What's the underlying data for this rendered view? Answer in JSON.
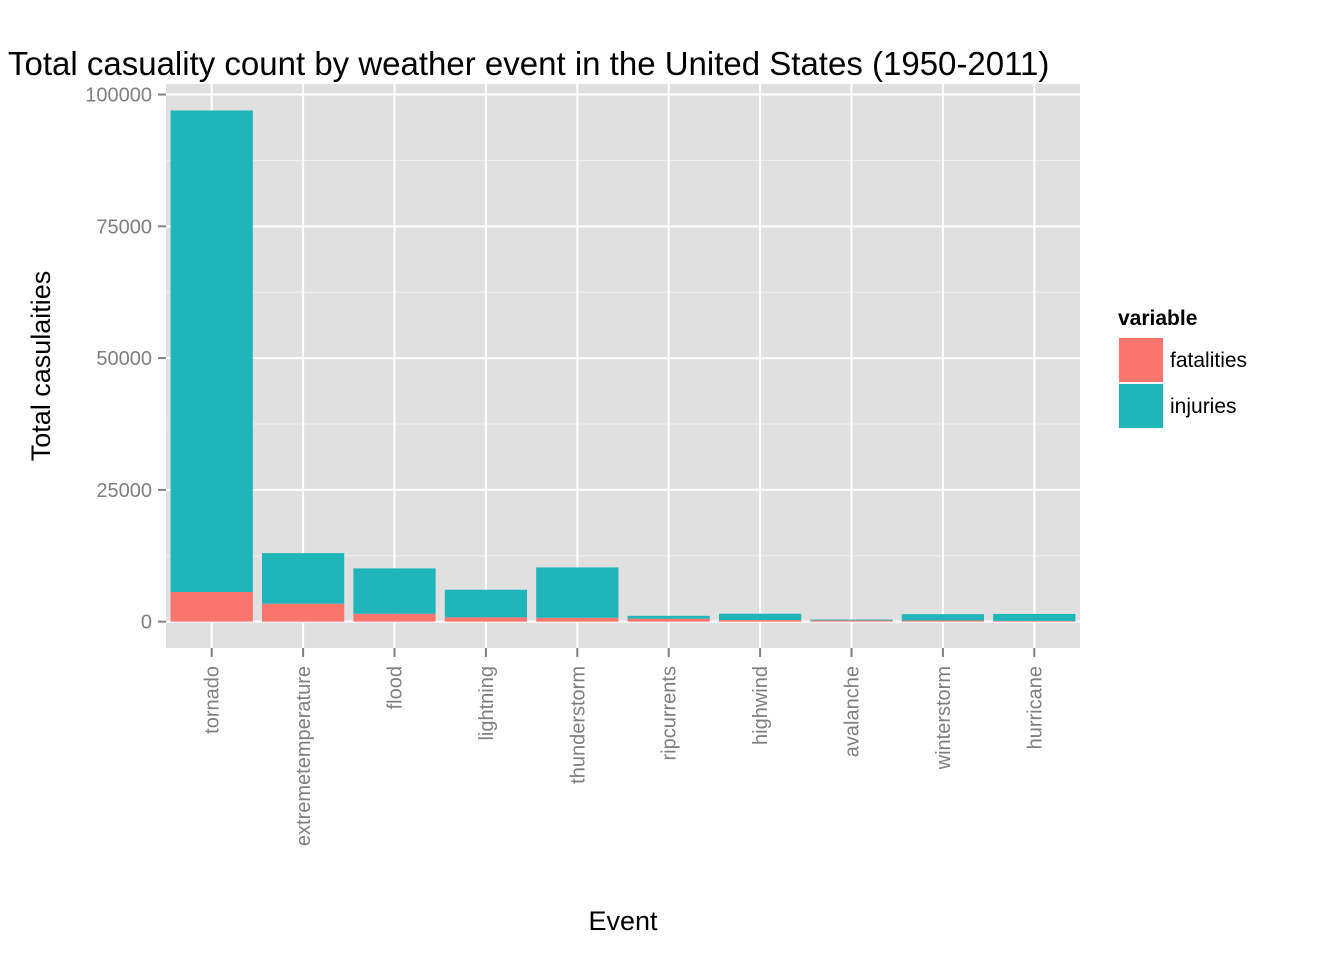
{
  "chart_data": {
    "type": "bar",
    "stacked": true,
    "title": "Total casuality count by weather event in the United States (1950-2011)",
    "xlabel": "Event",
    "ylabel": "Total casulaities",
    "categories": [
      "tornado",
      "extremetemperature",
      "flood",
      "lightning",
      "thunderstorm",
      "ripcurrents",
      "highwind",
      "avalanche",
      "winterstorm",
      "hurricane"
    ],
    "series": [
      {
        "name": "fatalities",
        "color": "#f8766d",
        "values": [
          5630,
          3400,
          1500,
          820,
          720,
          570,
          300,
          225,
          220,
          135
        ]
      },
      {
        "name": "injuries",
        "color": "#1fb5b9",
        "values": [
          91350,
          9600,
          8600,
          5230,
          9570,
          530,
          1200,
          170,
          1200,
          1330
        ]
      }
    ],
    "yticks": [
      0,
      25000,
      50000,
      75000,
      100000
    ],
    "ytick_labels": [
      "0",
      "25000",
      "50000",
      "75000",
      "100000"
    ],
    "ylim": [
      -5000,
      102000
    ],
    "legend": {
      "title": "variable",
      "position": "right"
    },
    "grid": true,
    "panel_color": "#e0e0e0",
    "grid_color": "#ffffff"
  }
}
